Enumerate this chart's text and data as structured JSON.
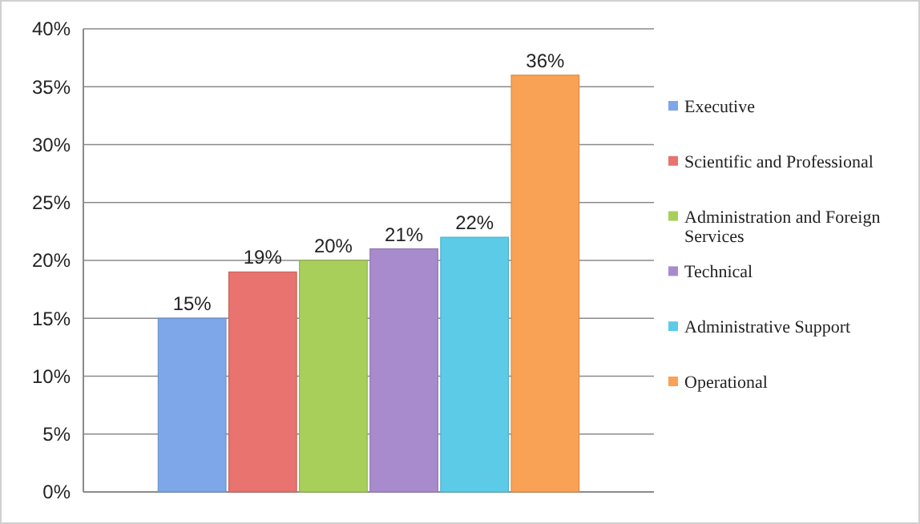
{
  "chart_data": {
    "type": "bar",
    "categories": [
      null
    ],
    "series": [
      {
        "name": "Executive",
        "color": "#7da7e8",
        "values": [
          15
        ],
        "value_labels": [
          "15%"
        ]
      },
      {
        "name": "Scientific and Professional",
        "color": "#e8736f",
        "values": [
          19
        ],
        "value_labels": [
          "19%"
        ]
      },
      {
        "name": "Administration and Foreign Services",
        "color": "#a8cf5a",
        "values": [
          20
        ],
        "value_labels": [
          "20%"
        ]
      },
      {
        "name": "Technical",
        "color": "#a88bcc",
        "values": [
          21
        ],
        "value_labels": [
          "21%"
        ]
      },
      {
        "name": "Administrative Support",
        "color": "#5ccbe8",
        "values": [
          22
        ],
        "value_labels": [
          "22%"
        ]
      },
      {
        "name": "Operational",
        "color": "#f9a155",
        "values": [
          36
        ],
        "value_labels": [
          "36%"
        ]
      }
    ],
    "ylim": [
      0,
      40
    ],
    "yticks": [
      {
        "value": 0,
        "label": "0%"
      },
      {
        "value": 5,
        "label": "5%"
      },
      {
        "value": 10,
        "label": "10%"
      },
      {
        "value": 15,
        "label": "15%"
      },
      {
        "value": 20,
        "label": "20%"
      },
      {
        "value": 25,
        "label": "25%"
      },
      {
        "value": 30,
        "label": "30%"
      },
      {
        "value": 35,
        "label": "35%"
      },
      {
        "value": 40,
        "label": "40%"
      }
    ],
    "grid": "y",
    "legend": "right"
  }
}
